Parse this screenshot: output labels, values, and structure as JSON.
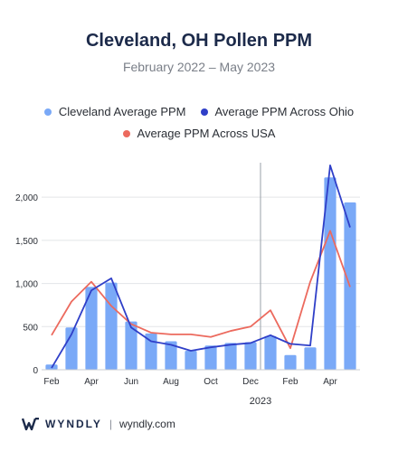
{
  "title": "Cleveland, OH Pollen PPM",
  "subtitle": "February 2022 – May 2023",
  "legend": [
    {
      "label": "Cleveland Average PPM",
      "color": "#7aa9f7",
      "marker": "dot"
    },
    {
      "label": "Average PPM Across Ohio",
      "color": "#2f3fc8",
      "marker": "dot"
    },
    {
      "label": "Average PPM Across USA",
      "color": "#ec6a5e",
      "marker": "dot"
    }
  ],
  "footer": {
    "brand": "WYNDLY",
    "url": "wyndly.com"
  },
  "chart_data": {
    "type": "bar",
    "categories": [
      "Feb 2022",
      "Mar 2022",
      "Apr 2022",
      "May 2022",
      "Jun 2022",
      "Jul 2022",
      "Aug 2022",
      "Sep 2022",
      "Oct 2022",
      "Nov 2022",
      "Dec 2022",
      "Jan 2023",
      "Feb 2023",
      "Mar 2023",
      "Apr 2023",
      "May 2023"
    ],
    "x_tick_labels": [
      "Feb",
      "",
      "Apr",
      "",
      "Jun",
      "",
      "Aug",
      "",
      "Oct",
      "",
      "Dec",
      "",
      "Feb",
      "",
      "Apr",
      ""
    ],
    "year_marker": {
      "label": "2023",
      "between": [
        "Dec 2022",
        "Jan 2023"
      ]
    },
    "ylim": [
      0,
      2400
    ],
    "y_ticks": [
      0,
      500,
      1000,
      1500,
      2000
    ],
    "y_tick_labels": [
      "0",
      "500",
      "1,000",
      "1,500",
      "2,000"
    ],
    "grid": true,
    "series": [
      {
        "name": "Cleveland Average PPM",
        "type": "bar",
        "color": "#7aa9f7",
        "values": [
          60,
          490,
          960,
          1010,
          560,
          420,
          330,
          220,
          280,
          310,
          320,
          390,
          170,
          260,
          2230,
          1940
        ]
      },
      {
        "name": "Average PPM Across Ohio",
        "type": "line",
        "color": "#2f3fc8",
        "values": [
          20,
          410,
          920,
          1060,
          490,
          330,
          290,
          220,
          260,
          290,
          310,
          400,
          300,
          280,
          2370,
          1650
        ]
      },
      {
        "name": "Average PPM Across USA",
        "type": "line",
        "color": "#ec6a5e",
        "values": [
          400,
          790,
          1020,
          740,
          530,
          430,
          410,
          410,
          380,
          450,
          500,
          690,
          250,
          1020,
          1610,
          960
        ]
      }
    ]
  }
}
